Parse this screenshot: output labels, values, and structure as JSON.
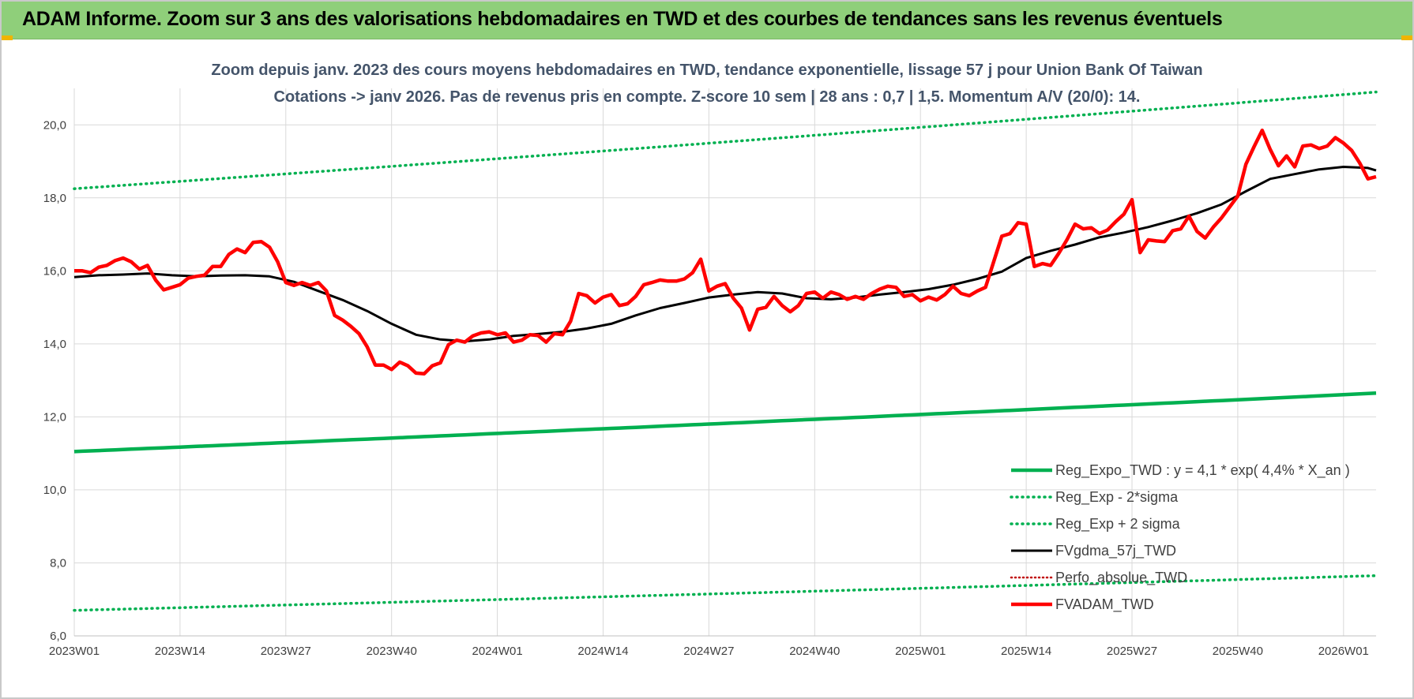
{
  "banner": {
    "title": "ADAM Informe. Zoom sur 3 ans des valorisations hebdomadaires en TWD et des courbes de tendances sans les revenus éventuels"
  },
  "chart_data": {
    "type": "line",
    "title": "Zoom depuis janv. 2023 des cours moyens hebdomadaires en TWD, tendance exponentielle, lissage 57 j pour Union Bank Of Taiwan",
    "subtitle": "Cotations -> janv 2026. Pas de revenus pris en compte. Z-score 10 sem | 28 ans : 0,7 | 1,5. Momentum A/V (20/0): 14.",
    "xlabel": "",
    "ylabel": "",
    "ylim": [
      6,
      21
    ],
    "yticks": [
      "6,0",
      "8,0",
      "10,0",
      "12,0",
      "14,0",
      "16,0",
      "18,0",
      "20,0"
    ],
    "x_labels": [
      "2023W01",
      "2023W14",
      "2023W27",
      "2023W40",
      "2024W01",
      "2024W14",
      "2024W27",
      "2024W40",
      "2025W01",
      "2025W14",
      "2025W27",
      "2025W40",
      "2026W01"
    ],
    "x_range_weeks": [
      0,
      160
    ],
    "grid": true,
    "legend_position": "bottom-right",
    "series": [
      {
        "name": "Reg_Expo_TWD : y = 4,1 * exp( 4,4% *  X_an )",
        "color": "#00b050",
        "style": "solid-thick",
        "start": 11.05,
        "end": 12.65
      },
      {
        "name": "Reg_Exp - 2*sigma",
        "color": "#00b050",
        "style": "dotted",
        "start": 6.7,
        "end": 7.65
      },
      {
        "name": "Reg_Exp + 2 sigma",
        "color": "#00b050",
        "style": "dotted",
        "start": 18.25,
        "end": 20.9
      },
      {
        "name": "FVgdma_57j_TWD",
        "color": "#000000",
        "style": "solid",
        "points": [
          [
            0,
            15.83
          ],
          [
            3,
            15.88
          ],
          [
            6,
            15.9
          ],
          [
            9,
            15.93
          ],
          [
            12,
            15.88
          ],
          [
            15,
            15.85
          ],
          [
            18,
            15.87
          ],
          [
            21,
            15.88
          ],
          [
            24,
            15.85
          ],
          [
            27,
            15.7
          ],
          [
            30,
            15.45
          ],
          [
            33,
            15.2
          ],
          [
            36,
            14.9
          ],
          [
            39,
            14.55
          ],
          [
            42,
            14.25
          ],
          [
            45,
            14.12
          ],
          [
            48,
            14.07
          ],
          [
            51,
            14.12
          ],
          [
            54,
            14.22
          ],
          [
            57,
            14.27
          ],
          [
            60,
            14.33
          ],
          [
            63,
            14.42
          ],
          [
            66,
            14.55
          ],
          [
            69,
            14.78
          ],
          [
            72,
            14.98
          ],
          [
            75,
            15.12
          ],
          [
            78,
            15.27
          ],
          [
            81,
            15.35
          ],
          [
            84,
            15.42
          ],
          [
            87,
            15.38
          ],
          [
            90,
            15.25
          ],
          [
            93,
            15.22
          ],
          [
            96,
            15.27
          ],
          [
            99,
            15.35
          ],
          [
            102,
            15.42
          ],
          [
            105,
            15.5
          ],
          [
            108,
            15.62
          ],
          [
            111,
            15.78
          ],
          [
            114,
            15.98
          ],
          [
            117,
            16.35
          ],
          [
            120,
            16.55
          ],
          [
            123,
            16.72
          ],
          [
            126,
            16.92
          ],
          [
            129,
            17.05
          ],
          [
            132,
            17.2
          ],
          [
            135,
            17.38
          ],
          [
            138,
            17.58
          ],
          [
            141,
            17.82
          ],
          [
            144,
            18.18
          ],
          [
            147,
            18.52
          ],
          [
            150,
            18.65
          ],
          [
            153,
            18.78
          ],
          [
            156,
            18.85
          ],
          [
            159,
            18.82
          ],
          [
            160,
            18.75
          ]
        ]
      },
      {
        "name": "Perfo_absolue_TWD",
        "color": "#c00000",
        "style": "dotted-red",
        "points": []
      },
      {
        "name": "FVADAM_TWD",
        "color": "#ff0000",
        "style": "solid-thick",
        "points": [
          [
            0,
            16.0
          ],
          [
            1,
            16.0
          ],
          [
            2,
            15.95
          ],
          [
            3,
            16.1
          ],
          [
            4,
            16.15
          ],
          [
            5,
            16.28
          ],
          [
            6,
            16.35
          ],
          [
            7,
            16.25
          ],
          [
            8,
            16.05
          ],
          [
            9,
            16.15
          ],
          [
            10,
            15.75
          ],
          [
            11,
            15.48
          ],
          [
            12,
            15.55
          ],
          [
            13,
            15.62
          ],
          [
            14,
            15.8
          ],
          [
            15,
            15.85
          ],
          [
            16,
            15.88
          ],
          [
            17,
            16.12
          ],
          [
            18,
            16.12
          ],
          [
            19,
            16.45
          ],
          [
            20,
            16.6
          ],
          [
            21,
            16.5
          ],
          [
            22,
            16.78
          ],
          [
            23,
            16.8
          ],
          [
            24,
            16.65
          ],
          [
            25,
            16.25
          ],
          [
            26,
            15.68
          ],
          [
            27,
            15.6
          ],
          [
            28,
            15.68
          ],
          [
            29,
            15.6
          ],
          [
            30,
            15.68
          ],
          [
            31,
            15.45
          ],
          [
            32,
            14.78
          ],
          [
            33,
            14.65
          ],
          [
            34,
            14.48
          ],
          [
            35,
            14.28
          ],
          [
            36,
            13.92
          ],
          [
            37,
            13.42
          ],
          [
            38,
            13.42
          ],
          [
            39,
            13.3
          ],
          [
            40,
            13.5
          ],
          [
            41,
            13.4
          ],
          [
            42,
            13.2
          ],
          [
            43,
            13.18
          ],
          [
            44,
            13.4
          ],
          [
            45,
            13.48
          ],
          [
            46,
            13.98
          ],
          [
            47,
            14.1
          ],
          [
            48,
            14.05
          ],
          [
            49,
            14.22
          ],
          [
            50,
            14.3
          ],
          [
            51,
            14.33
          ],
          [
            52,
            14.25
          ],
          [
            53,
            14.3
          ],
          [
            54,
            14.05
          ],
          [
            55,
            14.1
          ],
          [
            56,
            14.25
          ],
          [
            57,
            14.23
          ],
          [
            58,
            14.05
          ],
          [
            59,
            14.28
          ],
          [
            60,
            14.25
          ],
          [
            61,
            14.62
          ],
          [
            62,
            15.38
          ],
          [
            63,
            15.32
          ],
          [
            64,
            15.12
          ],
          [
            65,
            15.28
          ],
          [
            66,
            15.35
          ],
          [
            67,
            15.05
          ],
          [
            68,
            15.1
          ],
          [
            69,
            15.3
          ],
          [
            70,
            15.62
          ],
          [
            71,
            15.68
          ],
          [
            72,
            15.75
          ],
          [
            73,
            15.72
          ],
          [
            74,
            15.72
          ],
          [
            75,
            15.78
          ],
          [
            76,
            15.95
          ],
          [
            77,
            16.32
          ],
          [
            78,
            15.45
          ],
          [
            79,
            15.58
          ],
          [
            80,
            15.65
          ],
          [
            81,
            15.25
          ],
          [
            82,
            14.98
          ],
          [
            83,
            14.38
          ],
          [
            84,
            14.95
          ],
          [
            85,
            15.0
          ],
          [
            86,
            15.3
          ],
          [
            87,
            15.05
          ],
          [
            88,
            14.88
          ],
          [
            89,
            15.05
          ],
          [
            90,
            15.38
          ],
          [
            91,
            15.42
          ],
          [
            92,
            15.25
          ],
          [
            93,
            15.42
          ],
          [
            94,
            15.35
          ],
          [
            95,
            15.22
          ],
          [
            96,
            15.3
          ],
          [
            97,
            15.22
          ],
          [
            98,
            15.38
          ],
          [
            99,
            15.5
          ],
          [
            100,
            15.58
          ],
          [
            101,
            15.55
          ],
          [
            102,
            15.3
          ],
          [
            103,
            15.35
          ],
          [
            104,
            15.18
          ],
          [
            105,
            15.28
          ],
          [
            106,
            15.2
          ],
          [
            107,
            15.35
          ],
          [
            108,
            15.58
          ],
          [
            109,
            15.38
          ],
          [
            110,
            15.32
          ],
          [
            111,
            15.45
          ],
          [
            112,
            15.55
          ],
          [
            113,
            16.25
          ],
          [
            114,
            16.95
          ],
          [
            115,
            17.02
          ],
          [
            116,
            17.32
          ],
          [
            117,
            17.28
          ],
          [
            118,
            16.12
          ],
          [
            119,
            16.2
          ],
          [
            120,
            16.15
          ],
          [
            121,
            16.48
          ],
          [
            122,
            16.85
          ],
          [
            123,
            17.28
          ],
          [
            124,
            17.15
          ],
          [
            125,
            17.18
          ],
          [
            126,
            17.02
          ],
          [
            127,
            17.12
          ],
          [
            128,
            17.35
          ],
          [
            129,
            17.55
          ],
          [
            130,
            17.95
          ],
          [
            131,
            16.5
          ],
          [
            132,
            16.85
          ],
          [
            133,
            16.82
          ],
          [
            134,
            16.8
          ],
          [
            135,
            17.1
          ],
          [
            136,
            17.15
          ],
          [
            137,
            17.5
          ],
          [
            138,
            17.08
          ],
          [
            139,
            16.9
          ],
          [
            140,
            17.2
          ],
          [
            141,
            17.45
          ],
          [
            142,
            17.75
          ],
          [
            143,
            18.05
          ],
          [
            144,
            18.92
          ],
          [
            145,
            19.4
          ],
          [
            146,
            19.85
          ],
          [
            147,
            19.32
          ],
          [
            148,
            18.88
          ],
          [
            149,
            19.15
          ],
          [
            150,
            18.85
          ],
          [
            151,
            19.42
          ],
          [
            152,
            19.45
          ],
          [
            153,
            19.35
          ],
          [
            154,
            19.42
          ],
          [
            155,
            19.65
          ],
          [
            156,
            19.5
          ],
          [
            157,
            19.3
          ],
          [
            158,
            18.95
          ],
          [
            159,
            18.52
          ],
          [
            160,
            18.58
          ]
        ]
      }
    ]
  }
}
